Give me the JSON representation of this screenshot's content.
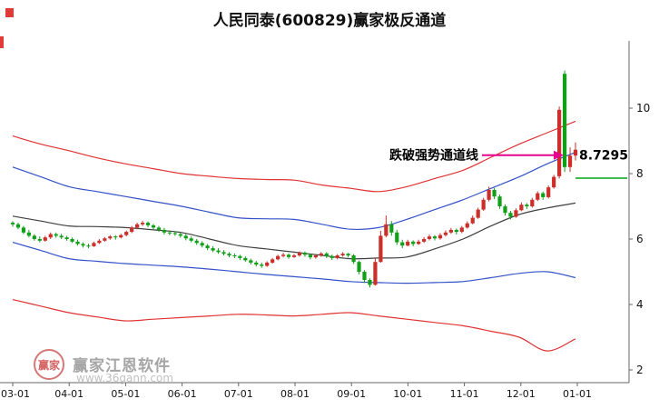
{
  "title": "人民同泰(600829)赢家极反通道",
  "watermark": {
    "brand": "赢家江恩软件",
    "url": "www.36gann.com",
    "logo_text": "赢家"
  },
  "chart_data": {
    "type": "candlestick",
    "title": "人民同泰(600829)赢家极反通道",
    "x_ticks": [
      "03-01",
      "04-01",
      "05-01",
      "06-01",
      "07-01",
      "08-01",
      "09-01",
      "10-01",
      "11-01",
      "12-01",
      "01-01"
    ],
    "y_ticks": [
      2,
      4,
      6,
      8,
      10
    ],
    "ylim": [
      1.5,
      11.7
    ],
    "grid": false,
    "legend": "none",
    "colors": {
      "up": "#cc2f2a",
      "down": "#0fa018",
      "axis": "#666666",
      "tick_label": "#111111"
    },
    "candles": [
      [
        6.5,
        6.55,
        6.38,
        6.45
      ],
      [
        6.45,
        6.5,
        6.3,
        6.35
      ],
      [
        6.35,
        6.4,
        6.15,
        6.2
      ],
      [
        6.2,
        6.28,
        6.05,
        6.1
      ],
      [
        6.1,
        6.15,
        5.95,
        6.0
      ],
      [
        6.0,
        6.08,
        5.9,
        5.95
      ],
      [
        5.95,
        6.1,
        5.92,
        6.05
      ],
      [
        6.05,
        6.2,
        6.0,
        6.15
      ],
      [
        6.15,
        6.2,
        6.04,
        6.1
      ],
      [
        6.1,
        6.16,
        6.0,
        6.05
      ],
      [
        6.05,
        6.1,
        5.95,
        6.0
      ],
      [
        6.0,
        6.05,
        5.88,
        5.92
      ],
      [
        5.92,
        5.98,
        5.8,
        5.85
      ],
      [
        5.85,
        5.9,
        5.74,
        5.8
      ],
      [
        5.8,
        5.86,
        5.72,
        5.78
      ],
      [
        5.78,
        5.92,
        5.76,
        5.88
      ],
      [
        5.88,
        6.0,
        5.85,
        5.95
      ],
      [
        5.95,
        6.06,
        5.92,
        6.02
      ],
      [
        6.02,
        6.12,
        5.98,
        6.08
      ],
      [
        6.08,
        6.12,
        5.98,
        6.05
      ],
      [
        6.05,
        6.16,
        6.02,
        6.12
      ],
      [
        6.12,
        6.26,
        6.08,
        6.22
      ],
      [
        6.22,
        6.4,
        6.18,
        6.35
      ],
      [
        6.35,
        6.5,
        6.3,
        6.45
      ],
      [
        6.45,
        6.56,
        6.4,
        6.5
      ],
      [
        6.5,
        6.54,
        6.36,
        6.42
      ],
      [
        6.42,
        6.46,
        6.28,
        6.35
      ],
      [
        6.35,
        6.4,
        6.22,
        6.28
      ],
      [
        6.28,
        6.34,
        6.14,
        6.2
      ],
      [
        6.2,
        6.26,
        6.12,
        6.18
      ],
      [
        6.18,
        6.24,
        6.1,
        6.15
      ],
      [
        6.15,
        6.2,
        6.04,
        6.1
      ],
      [
        6.1,
        6.15,
        5.96,
        6.02
      ],
      [
        6.02,
        6.08,
        5.9,
        5.95
      ],
      [
        5.95,
        6.0,
        5.82,
        5.88
      ],
      [
        5.88,
        5.93,
        5.74,
        5.8
      ],
      [
        5.8,
        5.85,
        5.66,
        5.72
      ],
      [
        5.72,
        5.78,
        5.6,
        5.65
      ],
      [
        5.65,
        5.72,
        5.55,
        5.6
      ],
      [
        5.6,
        5.66,
        5.5,
        5.55
      ],
      [
        5.55,
        5.6,
        5.44,
        5.5
      ],
      [
        5.5,
        5.56,
        5.42,
        5.48
      ],
      [
        5.48,
        5.52,
        5.36,
        5.42
      ],
      [
        5.42,
        5.47,
        5.3,
        5.35
      ],
      [
        5.35,
        5.4,
        5.22,
        5.28
      ],
      [
        5.28,
        5.33,
        5.16,
        5.22
      ],
      [
        5.22,
        5.28,
        5.12,
        5.18
      ],
      [
        5.18,
        5.32,
        5.15,
        5.28
      ],
      [
        5.28,
        5.42,
        5.25,
        5.38
      ],
      [
        5.38,
        5.52,
        5.35,
        5.48
      ],
      [
        5.48,
        5.58,
        5.44,
        5.52
      ],
      [
        5.52,
        5.56,
        5.4,
        5.45
      ],
      [
        5.45,
        5.55,
        5.42,
        5.5
      ],
      [
        5.5,
        5.62,
        5.46,
        5.58
      ],
      [
        5.58,
        5.62,
        5.46,
        5.52
      ],
      [
        5.52,
        5.56,
        5.38,
        5.44
      ],
      [
        5.44,
        5.54,
        5.4,
        5.5
      ],
      [
        5.5,
        5.6,
        5.46,
        5.56
      ],
      [
        5.56,
        5.6,
        5.42,
        5.48
      ],
      [
        5.48,
        5.52,
        5.36,
        5.42
      ],
      [
        5.42,
        5.54,
        5.38,
        5.5
      ],
      [
        5.5,
        5.6,
        5.46,
        5.55
      ],
      [
        5.55,
        5.58,
        5.44,
        5.5
      ],
      [
        5.5,
        5.54,
        5.24,
        5.3
      ],
      [
        5.3,
        5.34,
        4.92,
        5.0
      ],
      [
        5.0,
        5.05,
        4.66,
        4.75
      ],
      [
        4.75,
        4.8,
        4.52,
        4.6
      ],
      [
        4.6,
        5.42,
        4.58,
        5.3
      ],
      [
        5.3,
        6.25,
        5.28,
        6.1
      ],
      [
        6.1,
        6.72,
        6.05,
        6.45
      ],
      [
        6.45,
        6.55,
        6.1,
        6.2
      ],
      [
        6.2,
        6.28,
        5.82,
        5.9
      ],
      [
        5.9,
        5.98,
        5.72,
        5.8
      ],
      [
        5.8,
        5.98,
        5.78,
        5.92
      ],
      [
        5.92,
        5.96,
        5.78,
        5.85
      ],
      [
        5.85,
        5.98,
        5.82,
        5.92
      ],
      [
        5.92,
        6.06,
        5.88,
        6.0
      ],
      [
        6.0,
        6.14,
        5.96,
        6.08
      ],
      [
        6.08,
        6.12,
        5.96,
        6.02
      ],
      [
        6.02,
        6.18,
        5.98,
        6.12
      ],
      [
        6.12,
        6.26,
        6.08,
        6.2
      ],
      [
        6.2,
        6.34,
        6.16,
        6.28
      ],
      [
        6.28,
        6.32,
        6.14,
        6.22
      ],
      [
        6.22,
        6.4,
        6.18,
        6.35
      ],
      [
        6.35,
        6.54,
        6.32,
        6.48
      ],
      [
        6.48,
        6.72,
        6.45,
        6.65
      ],
      [
        6.65,
        6.96,
        6.62,
        6.9
      ],
      [
        6.9,
        7.26,
        6.86,
        7.2
      ],
      [
        7.2,
        7.6,
        7.15,
        7.5
      ],
      [
        7.5,
        7.56,
        7.22,
        7.3
      ],
      [
        7.3,
        7.36,
        6.92,
        7.0
      ],
      [
        7.0,
        7.06,
        6.72,
        6.8
      ],
      [
        6.8,
        6.86,
        6.6,
        6.68
      ],
      [
        6.68,
        6.94,
        6.65,
        6.88
      ],
      [
        6.88,
        7.12,
        6.85,
        7.05
      ],
      [
        7.05,
        7.1,
        6.92,
        7.0
      ],
      [
        7.0,
        7.26,
        6.96,
        7.2
      ],
      [
        7.2,
        7.46,
        7.16,
        7.4
      ],
      [
        7.4,
        7.45,
        7.2,
        7.28
      ],
      [
        7.28,
        7.64,
        7.24,
        7.58
      ],
      [
        7.58,
        7.96,
        7.54,
        7.9
      ],
      [
        7.92,
        10.05,
        7.85,
        9.95
      ],
      [
        11.05,
        11.15,
        8.05,
        8.2
      ],
      [
        8.2,
        8.8,
        8.05,
        8.55
      ],
      [
        8.55,
        8.95,
        8.4,
        8.73
      ]
    ],
    "channel_lines": [
      {
        "name": "upper-red",
        "color": "#e03333",
        "values": [
          9.15,
          8.9,
          8.7,
          8.48,
          8.3,
          8.15,
          8.0,
          7.92,
          7.85,
          7.82,
          7.8,
          7.65,
          7.55,
          7.45,
          7.6,
          7.85,
          8.1,
          8.5,
          8.9,
          9.25,
          9.6
        ]
      },
      {
        "name": "upper-blue",
        "color": "#3352c8",
        "values": [
          8.2,
          7.9,
          7.6,
          7.45,
          7.3,
          7.15,
          7.0,
          6.82,
          6.65,
          6.62,
          6.6,
          6.45,
          6.3,
          6.35,
          6.6,
          6.9,
          7.2,
          7.55,
          7.9,
          8.3,
          8.65
        ]
      },
      {
        "name": "middle",
        "color": "#404040",
        "values": [
          6.7,
          6.55,
          6.4,
          6.38,
          6.35,
          6.28,
          6.2,
          6.0,
          5.8,
          5.7,
          5.6,
          5.5,
          5.4,
          5.42,
          5.45,
          5.7,
          6.0,
          6.4,
          6.75,
          6.95,
          7.1
        ]
      },
      {
        "name": "lower-blue",
        "color": "#3352c8",
        "values": [
          5.9,
          5.65,
          5.4,
          5.32,
          5.25,
          5.2,
          5.15,
          5.08,
          5.0,
          4.92,
          4.85,
          4.78,
          4.7,
          4.67,
          4.65,
          4.67,
          4.7,
          4.82,
          4.95,
          5.0,
          4.82
        ]
      },
      {
        "name": "lower-red",
        "color": "#e03333",
        "values": [
          4.15,
          3.95,
          3.75,
          3.62,
          3.5,
          3.55,
          3.6,
          3.65,
          3.7,
          3.68,
          3.65,
          3.7,
          3.75,
          3.65,
          3.55,
          3.45,
          3.35,
          3.18,
          3.0,
          2.58,
          2.95
        ]
      }
    ],
    "last_price": 8.7295,
    "last_price_line": {
      "value": 7.86,
      "color": "#00a513"
    },
    "annotation": {
      "text": "跌破强势通道线",
      "label": "8.7295",
      "arrow_color": "#e5008f"
    }
  }
}
